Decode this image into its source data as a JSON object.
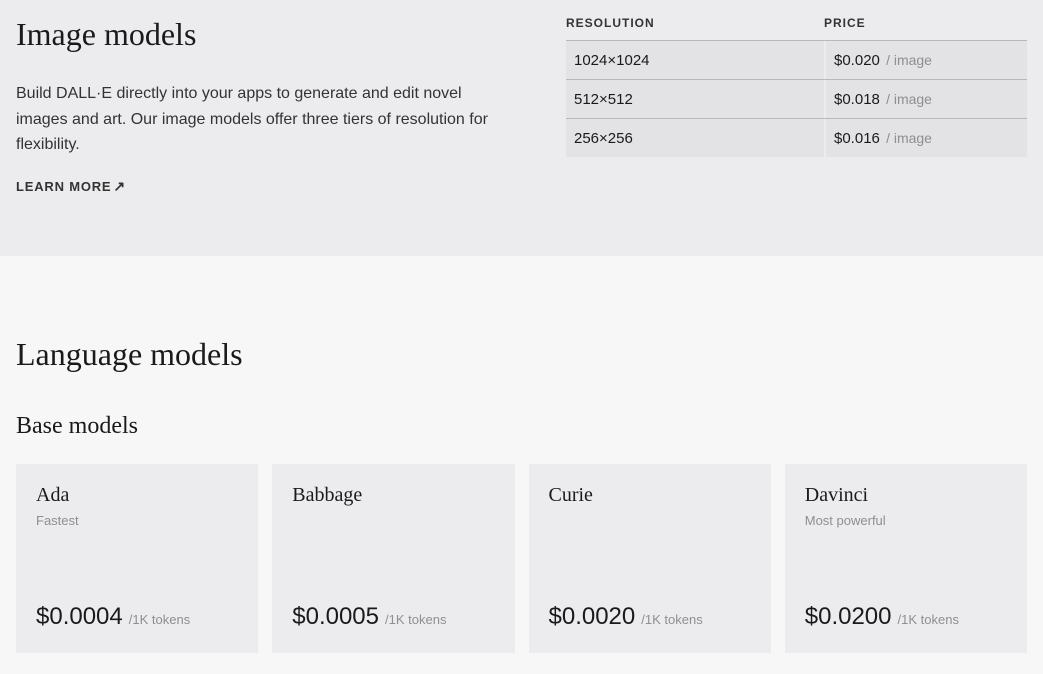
{
  "image_section": {
    "title": "Image models",
    "description": "Build DALL·E directly into your apps to generate and edit novel images and art. Our image models offer three tiers of resolution for flexibility.",
    "learn_more_label": "LEARN MORE",
    "table": {
      "header_resolution": "RESOLUTION",
      "header_price": "PRICE",
      "rows": [
        {
          "resolution": "1024×1024",
          "price": "$0.020",
          "unit": "/ image"
        },
        {
          "resolution": "512×512",
          "price": "$0.018",
          "unit": "/ image"
        },
        {
          "resolution": "256×256",
          "price": "$0.016",
          "unit": "/ image"
        }
      ]
    }
  },
  "language_section": {
    "title": "Language models",
    "subsection": "Base models",
    "models": [
      {
        "name": "Ada",
        "tag": "Fastest",
        "price": "$0.0004",
        "unit": "/1K tokens"
      },
      {
        "name": "Babbage",
        "tag": "",
        "price": "$0.0005",
        "unit": "/1K tokens"
      },
      {
        "name": "Curie",
        "tag": "",
        "price": "$0.0020",
        "unit": "/1K tokens"
      },
      {
        "name": "Davinci",
        "tag": "Most powerful",
        "price": "$0.0200",
        "unit": "/1K tokens"
      }
    ]
  },
  "colors": {
    "page_bg": "#f7f7f8",
    "section_bg": "#ececee",
    "row_bg": "#e3e3e5",
    "text_primary": "#1a1a1a",
    "text_body": "#333333",
    "text_muted": "#8e8e93",
    "border": "#b8b8bb"
  }
}
